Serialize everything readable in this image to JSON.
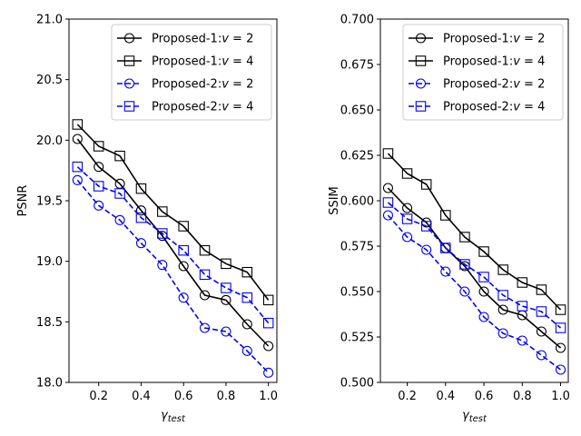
{
  "chart_data": [
    {
      "type": "line",
      "ylabel": "PSNR",
      "xlabel": "γ",
      "xlabel_sub": "test",
      "xlim": [
        0.06,
        1.04
      ],
      "ylim": [
        18.0,
        21.0
      ],
      "xticks": [
        0.2,
        0.4,
        0.6,
        0.8,
        1.0
      ],
      "xtick_labels": [
        "0.2",
        "0.4",
        "0.6",
        "0.8",
        "1.0"
      ],
      "yticks": [
        18.0,
        18.5,
        19.0,
        19.5,
        20.0,
        20.5,
        21.0
      ],
      "ytick_labels": [
        "18.0",
        "18.5",
        "19.0",
        "19.5",
        "20.0",
        "20.5",
        "21.0"
      ],
      "legend_position": "top-right",
      "x": [
        0.1,
        0.2,
        0.3,
        0.4,
        0.5,
        0.6,
        0.7,
        0.8,
        0.9,
        1.0
      ],
      "series": [
        {
          "name": "Proposed-1:v = 2",
          "name_prefix": "Proposed-1:",
          "var": "v",
          "eq": " = 2",
          "color": "#000000",
          "dash": false,
          "marker": "circle",
          "values": [
            20.01,
            19.78,
            19.64,
            19.42,
            19.21,
            18.96,
            18.72,
            18.68,
            18.48,
            18.3
          ]
        },
        {
          "name": "Proposed-1:v = 4",
          "name_prefix": "Proposed-1:",
          "var": "v",
          "eq": " = 4",
          "color": "#000000",
          "dash": false,
          "marker": "square",
          "values": [
            20.13,
            19.95,
            19.87,
            19.6,
            19.41,
            19.29,
            19.09,
            18.98,
            18.91,
            18.68
          ]
        },
        {
          "name": "Proposed-2:v = 2",
          "name_prefix": "Proposed-2:",
          "var": "v",
          "eq": " = 2",
          "color": "#0000ff",
          "dash": true,
          "marker": "circle",
          "values": [
            19.67,
            19.46,
            19.34,
            19.15,
            18.97,
            18.7,
            18.45,
            18.42,
            18.26,
            18.08
          ]
        },
        {
          "name": "Proposed-2:v = 4",
          "name_prefix": "Proposed-2:",
          "var": "v",
          "eq": " = 4",
          "color": "#0000ff",
          "dash": true,
          "marker": "square",
          "values": [
            19.78,
            19.62,
            19.56,
            19.36,
            19.23,
            19.09,
            18.89,
            18.78,
            18.7,
            18.49
          ]
        }
      ]
    },
    {
      "type": "line",
      "ylabel": "SSIM",
      "xlabel": "γ",
      "xlabel_sub": "test",
      "xlim": [
        0.06,
        1.04
      ],
      "ylim": [
        0.5,
        0.7
      ],
      "xticks": [
        0.2,
        0.4,
        0.6,
        0.8,
        1.0
      ],
      "xtick_labels": [
        "0.2",
        "0.4",
        "0.6",
        "0.8",
        "1.0"
      ],
      "yticks": [
        0.5,
        0.525,
        0.55,
        0.575,
        0.6,
        0.625,
        0.65,
        0.675,
        0.7
      ],
      "ytick_labels": [
        "0.500",
        "0.525",
        "0.550",
        "0.575",
        "0.600",
        "0.625",
        "0.650",
        "0.675",
        "0.700"
      ],
      "legend_position": "top-right",
      "x": [
        0.1,
        0.2,
        0.3,
        0.4,
        0.5,
        0.6,
        0.7,
        0.8,
        0.9,
        1.0
      ],
      "series": [
        {
          "name": "Proposed-1:v = 2",
          "name_prefix": "Proposed-1:",
          "var": "v",
          "eq": " = 2",
          "color": "#000000",
          "dash": false,
          "marker": "circle",
          "values": [
            0.607,
            0.596,
            0.588,
            0.574,
            0.564,
            0.55,
            0.54,
            0.537,
            0.528,
            0.519
          ]
        },
        {
          "name": "Proposed-1:v = 4",
          "name_prefix": "Proposed-1:",
          "var": "v",
          "eq": " = 4",
          "color": "#000000",
          "dash": false,
          "marker": "square",
          "values": [
            0.626,
            0.615,
            0.609,
            0.592,
            0.58,
            0.572,
            0.562,
            0.555,
            0.551,
            0.54
          ]
        },
        {
          "name": "Proposed-2:v = 2",
          "name_prefix": "Proposed-2:",
          "var": "v",
          "eq": " = 2",
          "color": "#0000ff",
          "dash": true,
          "marker": "circle",
          "values": [
            0.592,
            0.58,
            0.573,
            0.561,
            0.55,
            0.536,
            0.527,
            0.523,
            0.515,
            0.507
          ]
        },
        {
          "name": "Proposed-2:v = 4",
          "name_prefix": "Proposed-2:",
          "var": "v",
          "eq": " = 4",
          "color": "#0000ff",
          "dash": true,
          "marker": "square",
          "values": [
            0.599,
            0.59,
            0.586,
            0.574,
            0.565,
            0.558,
            0.548,
            0.542,
            0.539,
            0.53
          ]
        }
      ]
    }
  ]
}
